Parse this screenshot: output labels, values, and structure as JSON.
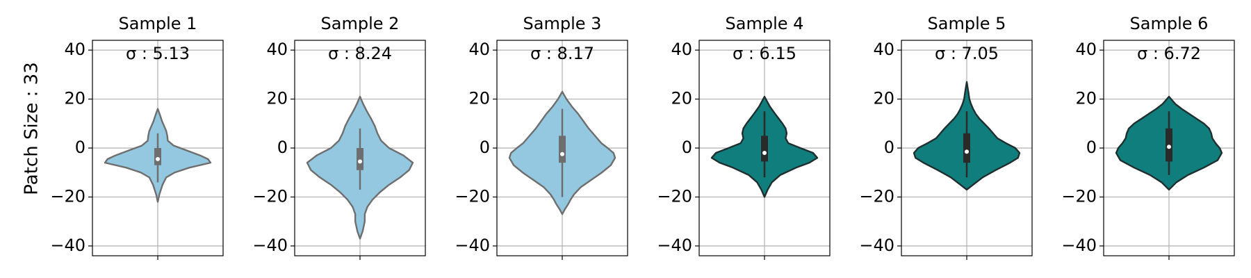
{
  "figure": {
    "ylabel": "Patch Size : 33"
  },
  "colors": {
    "light": "#93c8e0",
    "light_edge": "#6e6e6e",
    "dark": "#117e7e",
    "dark_edge": "#1f2f2f",
    "box_light": "#6e6e6e",
    "box_dark": "#2a2a2a",
    "grid": "#b0b0b0"
  },
  "chart_data": [
    {
      "type": "violin",
      "title": "Sample 1",
      "annotation": "σ : 5.13",
      "sigma": 5.13,
      "ylim": [
        -44,
        44
      ],
      "yticks": [
        "−40",
        "−20",
        "0",
        "20",
        "40"
      ],
      "grid": true,
      "style": "light",
      "quartiles": [
        -7,
        -4.5,
        0
      ],
      "whisker": [
        -14,
        6
      ],
      "extent": [
        -22,
        16
      ],
      "density_y": [
        -22,
        -19,
        -15,
        -12,
        -10,
        -8,
        -6,
        -4.5,
        -3,
        -1,
        1,
        3,
        5,
        7,
        9,
        11,
        13,
        16
      ],
      "density_w": [
        0,
        0.03,
        0.09,
        0.16,
        0.32,
        0.6,
        1.0,
        0.95,
        0.8,
        0.55,
        0.3,
        0.19,
        0.18,
        0.16,
        0.12,
        0.08,
        0.05,
        0
      ]
    },
    {
      "type": "violin",
      "title": "Sample 2",
      "annotation": "σ : 8.24",
      "sigma": 8.24,
      "ylim": [
        -44,
        44
      ],
      "yticks": [
        "−40",
        "−20",
        "0",
        "20",
        "40"
      ],
      "grid": true,
      "style": "light",
      "quartiles": [
        -9,
        -5.5,
        0
      ],
      "whisker": [
        -17,
        8
      ],
      "extent": [
        -37,
        21
      ],
      "density_y": [
        -37,
        -34,
        -30,
        -27,
        -24,
        -21,
        -18,
        -15,
        -12,
        -9,
        -6,
        -3,
        0,
        3,
        6,
        9,
        12,
        15,
        18,
        21
      ],
      "density_w": [
        0,
        0.05,
        0.09,
        0.09,
        0.14,
        0.24,
        0.38,
        0.55,
        0.76,
        0.93,
        1.0,
        0.82,
        0.55,
        0.4,
        0.33,
        0.28,
        0.21,
        0.13,
        0.06,
        0
      ]
    },
    {
      "type": "violin",
      "title": "Sample 3",
      "annotation": "σ : 8.17",
      "sigma": 8.17,
      "ylim": [
        -44,
        44
      ],
      "yticks": [
        "−40",
        "−20",
        "0",
        "20",
        "40"
      ],
      "grid": true,
      "style": "light",
      "quartiles": [
        -6,
        -2.5,
        5
      ],
      "whisker": [
        -20,
        16
      ],
      "extent": [
        -27,
        23
      ],
      "density_y": [
        -27,
        -25,
        -23,
        -21,
        -19,
        -16,
        -13,
        -10,
        -7,
        -4,
        -2,
        0,
        2,
        5,
        8,
        11,
        14,
        17,
        20,
        23
      ],
      "density_w": [
        0,
        0.05,
        0.11,
        0.16,
        0.22,
        0.35,
        0.55,
        0.75,
        0.92,
        1.0,
        0.97,
        0.86,
        0.74,
        0.62,
        0.5,
        0.4,
        0.3,
        0.18,
        0.08,
        0
      ]
    },
    {
      "type": "violin",
      "title": "Sample 4",
      "annotation": "σ : 6.15",
      "sigma": 6.15,
      "ylim": [
        -44,
        44
      ],
      "yticks": [
        "−40",
        "−20",
        "0",
        "20",
        "40"
      ],
      "grid": true,
      "style": "dark",
      "quartiles": [
        -5.5,
        -2,
        5
      ],
      "whisker": [
        -12,
        15
      ],
      "extent": [
        -20,
        21
      ],
      "density_y": [
        -20,
        -17,
        -14,
        -11,
        -8,
        -6,
        -4,
        -2,
        0,
        2,
        4,
        6,
        8,
        10,
        12,
        14,
        17,
        19,
        21
      ],
      "density_w": [
        0,
        0.06,
        0.14,
        0.3,
        0.6,
        0.85,
        1.0,
        0.92,
        0.68,
        0.45,
        0.4,
        0.42,
        0.4,
        0.34,
        0.27,
        0.2,
        0.1,
        0.05,
        0
      ]
    },
    {
      "type": "violin",
      "title": "Sample 5",
      "annotation": "σ : 7.05",
      "sigma": 7.05,
      "ylim": [
        -44,
        44
      ],
      "yticks": [
        "−40",
        "−20",
        "0",
        "20",
        "40"
      ],
      "grid": true,
      "style": "dark",
      "quartiles": [
        -6,
        -1.5,
        6
      ],
      "whisker": [
        -12,
        15
      ],
      "extent": [
        -17,
        27
      ],
      "density_y": [
        -17,
        -15,
        -12,
        -9,
        -6,
        -4,
        -2,
        0,
        2,
        4,
        6,
        8,
        10,
        12,
        14,
        16,
        18,
        20,
        23,
        27
      ],
      "density_w": [
        0,
        0.12,
        0.3,
        0.55,
        0.82,
        0.97,
        1.0,
        0.92,
        0.74,
        0.58,
        0.5,
        0.42,
        0.33,
        0.24,
        0.17,
        0.12,
        0.08,
        0.05,
        0.03,
        0
      ]
    },
    {
      "type": "violin",
      "title": "Sample 6",
      "annotation": "σ : 6.72",
      "sigma": 6.72,
      "ylim": [
        -44,
        44
      ],
      "yticks": [
        "−40",
        "−20",
        "0",
        "20",
        "40"
      ],
      "grid": true,
      "style": "dark",
      "quartiles": [
        -5.5,
        0.5,
        8
      ],
      "whisker": [
        -11,
        15
      ],
      "extent": [
        -17,
        21
      ],
      "density_y": [
        -17,
        -14,
        -11,
        -8,
        -5,
        -2,
        0,
        2,
        4,
        6,
        8,
        10,
        12,
        14,
        16,
        18,
        19.5,
        21
      ],
      "density_w": [
        0,
        0.14,
        0.36,
        0.66,
        0.92,
        1.0,
        0.96,
        0.88,
        0.82,
        0.8,
        0.76,
        0.66,
        0.52,
        0.38,
        0.24,
        0.12,
        0.06,
        0
      ]
    }
  ]
}
